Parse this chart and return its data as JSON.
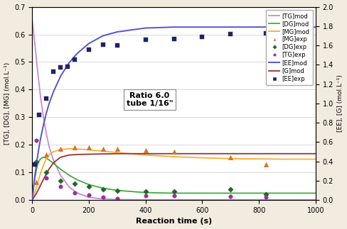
{
  "background_color": "#f2ece0",
  "plot_bg_color": "#ffffff",
  "xlabel": "Reaction time (s)",
  "ylabel_left": "[TG], [DG], [MG] (mol.L⁻¹)",
  "ylabel_right": "[EE], [G] (mol.L⁻¹)",
  "xlim": [
    0,
    1000
  ],
  "ylim_left": [
    0.0,
    0.7
  ],
  "ylim_right": [
    0.0,
    2.0
  ],
  "yticks_left": [
    0.0,
    0.1,
    0.2,
    0.3,
    0.4,
    0.5,
    0.6,
    0.7
  ],
  "yticks_right": [
    0.0,
    0.2,
    0.4,
    0.6,
    0.8,
    1.0,
    1.2,
    1.4,
    1.6,
    1.8,
    2.0
  ],
  "xticks": [
    0,
    200,
    400,
    600,
    800,
    1000
  ],
  "annotation_text": "Ratio 6.0\ntube 1/16\"",
  "TG_mod_color": "#cc88cc",
  "DG_mod_color": "#44aa44",
  "MG_mod_color": "#ffaa33",
  "EE_mod_color": "#5555cc",
  "G_mod_color": "#993333",
  "TG_mod_t": [
    0,
    5,
    10,
    15,
    20,
    25,
    30,
    40,
    50,
    60,
    75,
    100,
    130,
    160,
    200,
    250,
    300,
    400,
    500,
    600,
    700,
    800,
    900,
    1000
  ],
  "TG_mod_y": [
    0.655,
    0.61,
    0.56,
    0.51,
    0.46,
    0.415,
    0.37,
    0.3,
    0.24,
    0.193,
    0.145,
    0.09,
    0.048,
    0.025,
    0.01,
    0.004,
    0.002,
    0.001,
    0.001,
    0.001,
    0.001,
    0.001,
    0.001,
    0.001
  ],
  "DG_mod_t": [
    0,
    5,
    10,
    15,
    20,
    25,
    30,
    40,
    50,
    60,
    75,
    100,
    130,
    160,
    200,
    250,
    300,
    400,
    500,
    600,
    700,
    800,
    900,
    1000
  ],
  "DG_mod_y": [
    0.0,
    0.045,
    0.082,
    0.11,
    0.13,
    0.143,
    0.15,
    0.155,
    0.152,
    0.145,
    0.133,
    0.112,
    0.09,
    0.073,
    0.056,
    0.043,
    0.035,
    0.027,
    0.025,
    0.025,
    0.025,
    0.025,
    0.025,
    0.025
  ],
  "MG_mod_t": [
    0,
    5,
    10,
    15,
    20,
    25,
    30,
    40,
    50,
    60,
    75,
    100,
    130,
    160,
    200,
    250,
    300,
    400,
    500,
    600,
    700,
    800,
    900,
    1000
  ],
  "MG_mod_y": [
    0.0,
    0.015,
    0.03,
    0.048,
    0.065,
    0.082,
    0.098,
    0.127,
    0.15,
    0.165,
    0.175,
    0.183,
    0.186,
    0.185,
    0.182,
    0.177,
    0.172,
    0.163,
    0.157,
    0.153,
    0.15,
    0.149,
    0.148,
    0.148
  ],
  "G_mod_t": [
    0,
    5,
    10,
    15,
    20,
    25,
    30,
    40,
    50,
    60,
    75,
    100,
    130,
    160,
    200,
    250,
    300,
    400,
    500,
    600,
    700,
    800,
    900,
    1000
  ],
  "G_mod_y": [
    0.0,
    0.008,
    0.016,
    0.024,
    0.034,
    0.044,
    0.055,
    0.075,
    0.095,
    0.113,
    0.135,
    0.155,
    0.163,
    0.165,
    0.166,
    0.167,
    0.168,
    0.168,
    0.168,
    0.168,
    0.168,
    0.168,
    0.168,
    0.168
  ],
  "EE_mod_t": [
    0,
    5,
    10,
    15,
    20,
    25,
    30,
    40,
    50,
    60,
    75,
    100,
    130,
    160,
    200,
    250,
    300,
    400,
    500,
    600,
    700,
    800,
    900,
    1000
  ],
  "EE_mod_y": [
    0.0,
    0.14,
    0.26,
    0.37,
    0.47,
    0.56,
    0.64,
    0.78,
    0.9,
    1.0,
    1.12,
    1.28,
    1.42,
    1.52,
    1.62,
    1.7,
    1.74,
    1.78,
    1.79,
    1.79,
    1.79,
    1.79,
    1.79,
    1.79
  ],
  "MG_exp_t": [
    15,
    50,
    100,
    150,
    200,
    250,
    300,
    400,
    500,
    700,
    825
  ],
  "MG_exp_y": [
    0.065,
    0.165,
    0.185,
    0.19,
    0.19,
    0.185,
    0.185,
    0.18,
    0.175,
    0.155,
    0.13
  ],
  "DG_exp_t": [
    15,
    50,
    100,
    150,
    200,
    250,
    300,
    400,
    500,
    700,
    825
  ],
  "DG_exp_y": [
    0.14,
    0.1,
    0.07,
    0.06,
    0.05,
    0.04,
    0.035,
    0.03,
    0.03,
    0.038,
    0.02
  ],
  "TG_exp_t": [
    15,
    50,
    100,
    150,
    200,
    250,
    300,
    400,
    500,
    700,
    825
  ],
  "TG_exp_y": [
    0.215,
    0.08,
    0.05,
    0.025,
    0.018,
    0.01,
    0.005,
    0.015,
    0.015,
    0.012,
    0.01
  ],
  "EE_exp_t": [
    10,
    25,
    50,
    75,
    100,
    125,
    150,
    200,
    250,
    300,
    400,
    500,
    600,
    700,
    825
  ],
  "EE_exp_y": [
    0.37,
    0.885,
    1.05,
    1.33,
    1.37,
    1.38,
    1.455,
    1.555,
    1.605,
    1.6,
    1.66,
    1.665,
    1.685,
    1.715,
    1.725
  ],
  "MG_exp_color": "#cc7722",
  "DG_exp_color": "#226622",
  "TG_exp_color": "#993399",
  "EE_exp_color": "#222266"
}
